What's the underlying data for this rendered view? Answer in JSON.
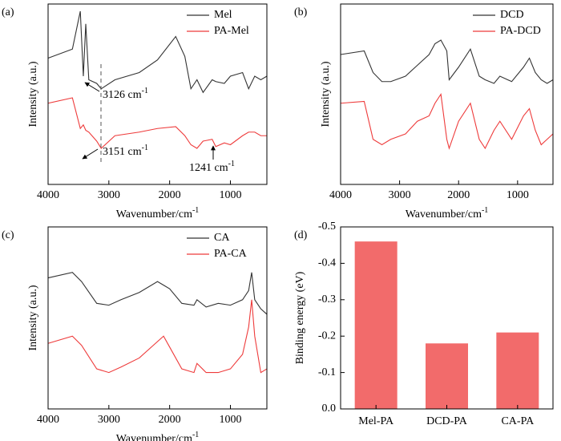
{
  "chart_data": [
    {
      "type": "line",
      "label": "(a)",
      "xlabel": {
        "text": "Wavenumber/cm",
        "superscript": "-1"
      },
      "ylabel": "Intensity (a.u.)",
      "xlim": [
        4000,
        400
      ],
      "xticks": [
        4000,
        3000,
        2000,
        1000
      ],
      "ylim": [
        0,
        100
      ],
      "legend": "upper right",
      "x": [
        4000,
        3600,
        3470,
        3420,
        3380,
        3330,
        3200,
        3126,
        2900,
        2500,
        2200,
        1900,
        1750,
        1650,
        1550,
        1450,
        1300,
        1241,
        1100,
        1000,
        800,
        700,
        600,
        500,
        400
      ],
      "series": [
        {
          "name": "Mel",
          "color": "#333333",
          "values": [
            70,
            75,
            96,
            60,
            89,
            58,
            56,
            53,
            58,
            62,
            69,
            82,
            71,
            53,
            58,
            51,
            58,
            57,
            56,
            60,
            62,
            53,
            60,
            58,
            60
          ]
        },
        {
          "name": "PA-Mel",
          "color": "#ee3b3b",
          "values": [
            45,
            48,
            31,
            33,
            30,
            29,
            24,
            20,
            27,
            29,
            31,
            32,
            27,
            22,
            20,
            24,
            25,
            21,
            23,
            22,
            27,
            29,
            29,
            27,
            27
          ]
        }
      ],
      "annotations": [
        {
          "text": "3126 cm",
          "superscript": "-1"
        },
        {
          "text": "3151 cm",
          "superscript": "-1"
        },
        {
          "text": "1241 cm",
          "superscript": "-1"
        }
      ]
    },
    {
      "type": "line",
      "label": "(b)",
      "xlabel": {
        "text": "Wavenumber/cm",
        "superscript": "-1"
      },
      "ylabel": "Intensity (a.u.)",
      "xlim": [
        4000,
        400
      ],
      "xticks": [
        4000,
        3000,
        2000,
        1000
      ],
      "ylim": [
        0,
        100
      ],
      "legend": "upper right",
      "x": [
        4000,
        3600,
        3450,
        3300,
        3150,
        2900,
        2700,
        2500,
        2400,
        2300,
        2200,
        2160,
        2000,
        1800,
        1650,
        1550,
        1400,
        1300,
        1100,
        900,
        800,
        700,
        600,
        500,
        400
      ],
      "series": [
        {
          "name": "DCD",
          "color": "#333333",
          "values": [
            72,
            74,
            62,
            57,
            57,
            60,
            66,
            72,
            78,
            80,
            74,
            58,
            65,
            75,
            60,
            58,
            56,
            60,
            57,
            65,
            70,
            62,
            58,
            56,
            58
          ]
        },
        {
          "name": "PA-DCD",
          "color": "#ee3b3b",
          "values": [
            45,
            46,
            25,
            22,
            25,
            28,
            35,
            38,
            45,
            50,
            25,
            20,
            35,
            45,
            25,
            20,
            30,
            35,
            25,
            38,
            42,
            30,
            22,
            25,
            28
          ]
        }
      ]
    },
    {
      "type": "line",
      "label": "(c)",
      "xlabel": {
        "text": "Wavenumber/cm",
        "superscript": "-1"
      },
      "ylabel": "Intensity (a.u.)",
      "xlim": [
        4000,
        400
      ],
      "xticks": [
        4000,
        3000,
        2000,
        1000
      ],
      "ylim": [
        0,
        100
      ],
      "legend": "upper right",
      "x": [
        4000,
        3600,
        3450,
        3200,
        3000,
        2800,
        2500,
        2200,
        2100,
        2000,
        1800,
        1600,
        1550,
        1400,
        1200,
        1000,
        800,
        700,
        650,
        600,
        500,
        400
      ],
      "series": [
        {
          "name": "CA",
          "color": "#333333",
          "values": [
            72,
            75,
            70,
            58,
            57,
            60,
            64,
            70,
            68,
            66,
            58,
            57,
            60,
            56,
            58,
            57,
            60,
            65,
            75,
            60,
            55,
            52
          ]
        },
        {
          "name": "PA-CA",
          "color": "#ee3b3b",
          "values": [
            36,
            40,
            35,
            22,
            20,
            23,
            28,
            37,
            40,
            34,
            22,
            20,
            25,
            20,
            20,
            22,
            30,
            45,
            60,
            40,
            20,
            22
          ]
        }
      ]
    },
    {
      "type": "bar",
      "label": "(d)",
      "ylabel": "Binding energy (eV)",
      "color": "#f26b6b",
      "categories": [
        "Mel-PA",
        "DCD-PA",
        "CA-PA"
      ],
      "values": [
        -0.46,
        -0.18,
        -0.21
      ],
      "ylim": [
        0,
        -0.5
      ],
      "yticks": [
        {
          "value": 0,
          "label": "0.0"
        },
        -0.1,
        -0.2,
        -0.3,
        -0.4,
        -0.5
      ]
    }
  ]
}
